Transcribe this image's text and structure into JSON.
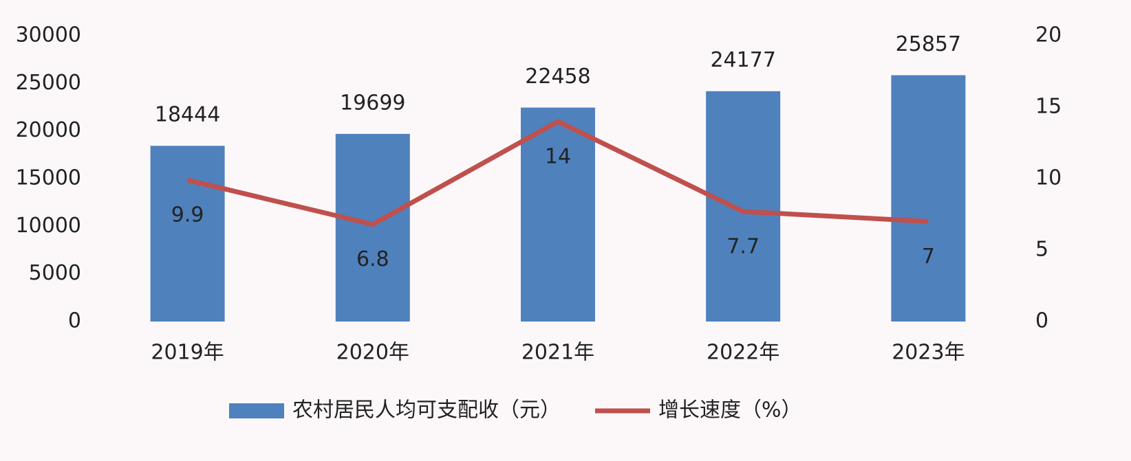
{
  "chart_data": {
    "type": "bar",
    "categories": [
      "2019年",
      "2020年",
      "2021年",
      "2022年",
      "2023年"
    ],
    "series": [
      {
        "name": "农村居民人均可支配收（元）",
        "type": "bar",
        "color": "#4f81bd",
        "values": [
          18444,
          19699,
          22458,
          24177,
          25857
        ]
      },
      {
        "name": "增长速度（%）",
        "type": "line",
        "axis": "y2",
        "color": "#c0504d",
        "values": [
          9.9,
          6.8,
          14,
          7.7,
          7
        ]
      }
    ],
    "ylim": [
      0,
      30000
    ],
    "yticks": [
      0,
      5000,
      10000,
      15000,
      20000,
      25000,
      30000
    ],
    "y2lim": [
      0,
      20
    ],
    "y2ticks": [
      0,
      5,
      10,
      15,
      20
    ],
    "grid": false,
    "legend": "bottom"
  }
}
